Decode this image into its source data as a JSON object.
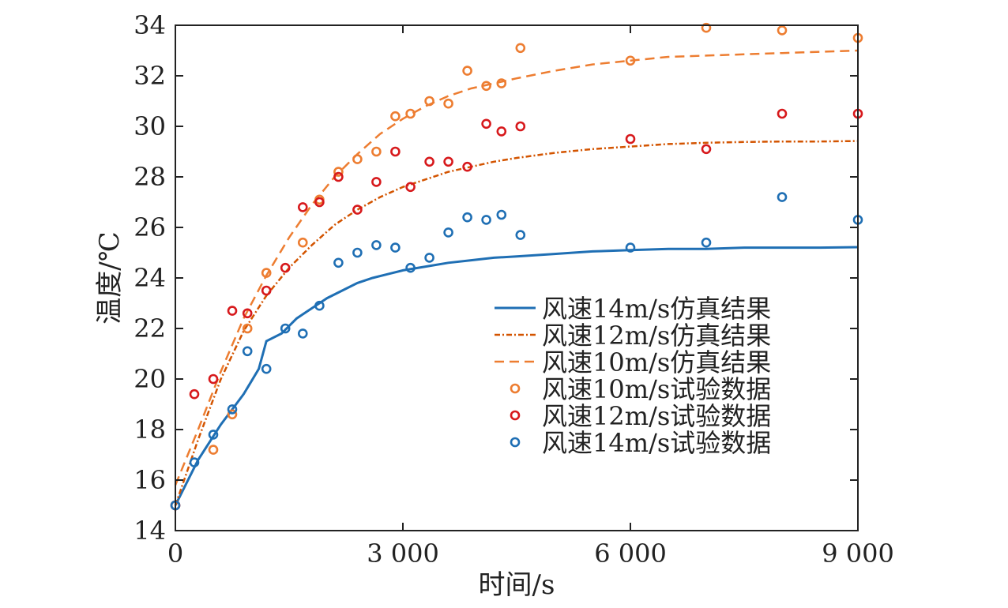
{
  "chart_data": {
    "type": "line",
    "xlabel": "时间/s",
    "ylabel": "温度/℃",
    "xlim": [
      0,
      9000
    ],
    "ylim": [
      14,
      34
    ],
    "xticks": [
      0,
      3000,
      6000,
      9000
    ],
    "xtick_labels": [
      "0",
      "3 000",
      "6 000",
      "9 000"
    ],
    "yticks": [
      14,
      16,
      18,
      20,
      22,
      24,
      26,
      28,
      30,
      32,
      34
    ],
    "ytick_labels": [
      "14",
      "16",
      "18",
      "20",
      "22",
      "24",
      "26",
      "28",
      "30",
      "32",
      "34"
    ],
    "legend_position": "lower-right",
    "grid": false,
    "series": [
      {
        "name": "风速14m/s仿真结果",
        "kind": "line",
        "style": "solid",
        "color": "#1f6fb4",
        "x": [
          0,
          300,
          600,
          900,
          1000,
          1100,
          1200,
          1400,
          1600,
          1800,
          2000,
          2200,
          2400,
          2600,
          2800,
          3000,
          3300,
          3600,
          3900,
          4200,
          4500,
          5000,
          5500,
          6000,
          6500,
          7000,
          7500,
          8000,
          8500,
          9000
        ],
        "y": [
          15.0,
          16.8,
          18.2,
          19.4,
          19.9,
          20.4,
          21.5,
          21.8,
          22.4,
          22.8,
          23.2,
          23.5,
          23.8,
          24.0,
          24.15,
          24.3,
          24.45,
          24.6,
          24.7,
          24.8,
          24.85,
          24.95,
          25.05,
          25.1,
          25.15,
          25.15,
          25.2,
          25.2,
          25.2,
          25.22
        ]
      },
      {
        "name": "风速12m/s仿真结果",
        "kind": "line",
        "style": "dashdot",
        "color": "#d35400",
        "x": [
          0,
          300,
          600,
          900,
          1200,
          1500,
          1800,
          2100,
          2400,
          2700,
          3000,
          3300,
          3600,
          3900,
          4200,
          4500,
          5000,
          5500,
          6000,
          6500,
          7000,
          7500,
          8000,
          8500,
          9000
        ],
        "y": [
          15.0,
          17.6,
          20.0,
          21.9,
          23.3,
          24.4,
          25.3,
          26.1,
          26.7,
          27.2,
          27.6,
          27.9,
          28.2,
          28.4,
          28.6,
          28.75,
          28.95,
          29.1,
          29.2,
          29.3,
          29.35,
          29.38,
          29.4,
          29.4,
          29.42
        ]
      },
      {
        "name": "风速10m/s仿真结果",
        "kind": "line",
        "style": "dashed",
        "color": "#ed7d31",
        "x": [
          0,
          300,
          600,
          900,
          1200,
          1500,
          1800,
          2100,
          2400,
          2700,
          3000,
          3300,
          3600,
          3900,
          4200,
          4500,
          5000,
          5500,
          6000,
          6500,
          7000,
          7500,
          8000,
          8500,
          9000
        ],
        "y": [
          15.8,
          18.0,
          20.3,
          22.4,
          24.1,
          25.6,
          26.9,
          28.0,
          28.9,
          29.7,
          30.3,
          30.8,
          31.2,
          31.5,
          31.7,
          31.9,
          32.2,
          32.45,
          32.6,
          32.75,
          32.8,
          32.85,
          32.9,
          32.95,
          33.0
        ]
      },
      {
        "name": "风速10m/s试验数据",
        "kind": "scatter",
        "color": "#ed7d31",
        "x": [
          0,
          500,
          750,
          950,
          1200,
          1680,
          1900,
          2150,
          2400,
          2650,
          2900,
          3100,
          3350,
          3600,
          3850,
          4100,
          4300,
          4550,
          6000,
          7000,
          8000,
          9000
        ],
        "y": [
          15.0,
          17.2,
          18.6,
          22.0,
          24.2,
          25.4,
          27.1,
          28.2,
          28.7,
          29.0,
          30.4,
          30.5,
          31.0,
          30.9,
          32.2,
          31.6,
          31.7,
          33.1,
          32.6,
          33.9,
          33.8,
          33.5
        ]
      },
      {
        "name": "风速12m/s试验数据",
        "kind": "scatter",
        "color": "#d7191c",
        "x": [
          0,
          250,
          500,
          750,
          950,
          1200,
          1450,
          1680,
          1900,
          2150,
          2400,
          2650,
          2900,
          3100,
          3350,
          3600,
          3850,
          4100,
          4300,
          4550,
          6000,
          7000,
          8000,
          9000
        ],
        "y": [
          15.0,
          19.4,
          20.0,
          22.7,
          22.6,
          23.5,
          24.4,
          26.8,
          27.0,
          28.0,
          26.7,
          27.8,
          29.0,
          27.6,
          28.6,
          28.6,
          28.4,
          30.1,
          29.8,
          30.0,
          29.5,
          29.1,
          30.5,
          30.5
        ]
      },
      {
        "name": "风速14m/s试验数据",
        "kind": "scatter",
        "color": "#1f6fb4",
        "x": [
          0,
          250,
          500,
          750,
          950,
          1200,
          1450,
          1680,
          1900,
          2150,
          2400,
          2650,
          2900,
          3100,
          3350,
          3600,
          3850,
          4100,
          4300,
          4550,
          6000,
          7000,
          8000,
          9000
        ],
        "y": [
          15.0,
          16.7,
          17.8,
          18.8,
          21.1,
          20.4,
          22.0,
          21.8,
          22.9,
          24.6,
          25.0,
          25.3,
          25.2,
          24.4,
          24.8,
          25.8,
          26.4,
          26.3,
          26.5,
          25.7,
          25.2,
          25.4,
          27.2,
          26.3
        ]
      }
    ]
  }
}
